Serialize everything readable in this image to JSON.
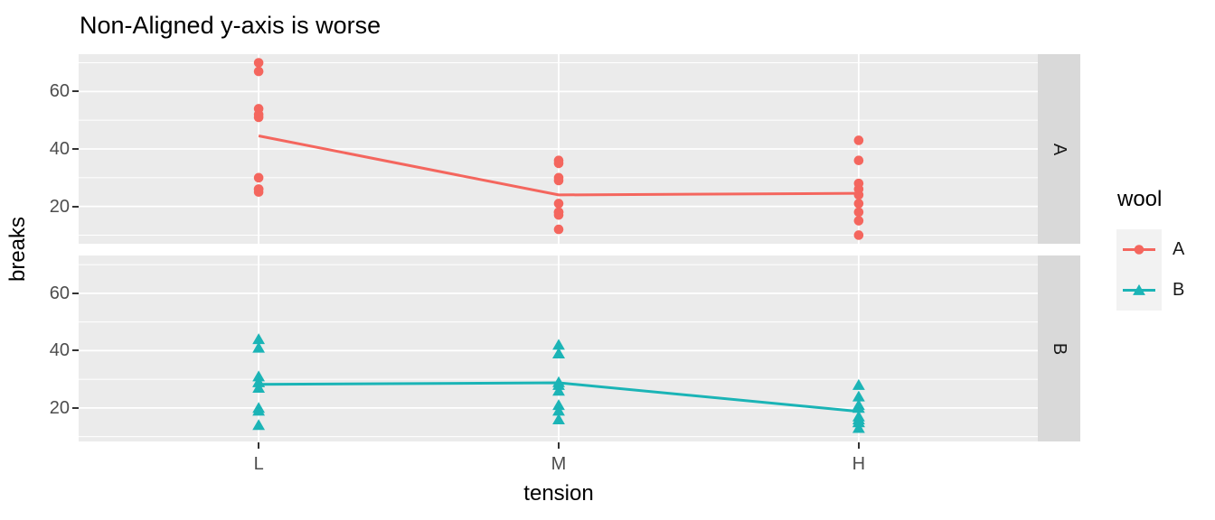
{
  "chart_data": {
    "type": "scatter",
    "title": "Non-Aligned y-axis is worse",
    "xlabel": "tension",
    "ylabel": "breaks",
    "x_categories": [
      "L",
      "M",
      "H"
    ],
    "y_ticks": [
      20,
      40,
      60
    ],
    "y_minor_gridlines": [
      10,
      30,
      50,
      70
    ],
    "facets": [
      {
        "label": "A",
        "series": "A",
        "marker": "circle",
        "color": "#F4665E",
        "ylim": [
          7,
          73
        ],
        "points": {
          "L": [
            26,
            30,
            54,
            25,
            70,
            52,
            51,
            26,
            67
          ],
          "M": [
            18,
            21,
            29,
            17,
            12,
            18,
            35,
            30,
            36
          ],
          "H": [
            36,
            21,
            24,
            18,
            10,
            43,
            28,
            15,
            26
          ]
        },
        "mean_line": {
          "L": 44.56,
          "M": 24.0,
          "H": 24.56
        }
      },
      {
        "label": "B",
        "series": "B",
        "marker": "triangle",
        "color": "#1BB4B6",
        "ylim": [
          8.3,
          73.2
        ],
        "points": {
          "L": [
            27,
            14,
            29,
            19,
            29,
            31,
            41,
            20,
            44
          ],
          "M": [
            42,
            26,
            19,
            16,
            39,
            28,
            21,
            39,
            29
          ],
          "H": [
            20,
            21,
            24,
            17,
            13,
            15,
            15,
            16,
            28
          ]
        },
        "mean_line": {
          "L": 28.22,
          "M": 28.78,
          "H": 18.78
        }
      }
    ],
    "legend": {
      "title": "wool",
      "entries": [
        {
          "label": "A",
          "marker": "circle",
          "color": "#F4665E"
        },
        {
          "label": "B",
          "marker": "triangle",
          "color": "#1BB4B6"
        }
      ]
    },
    "colors": {
      "panel_bg": "#EBEBEB",
      "strip_bg": "#D9D9D9",
      "grid": "#FFFFFF",
      "tick_text": "#4D4D4D",
      "tick_mark": "#333333",
      "text": "#000000",
      "legend_key_bg": "#F2F2F2"
    }
  }
}
